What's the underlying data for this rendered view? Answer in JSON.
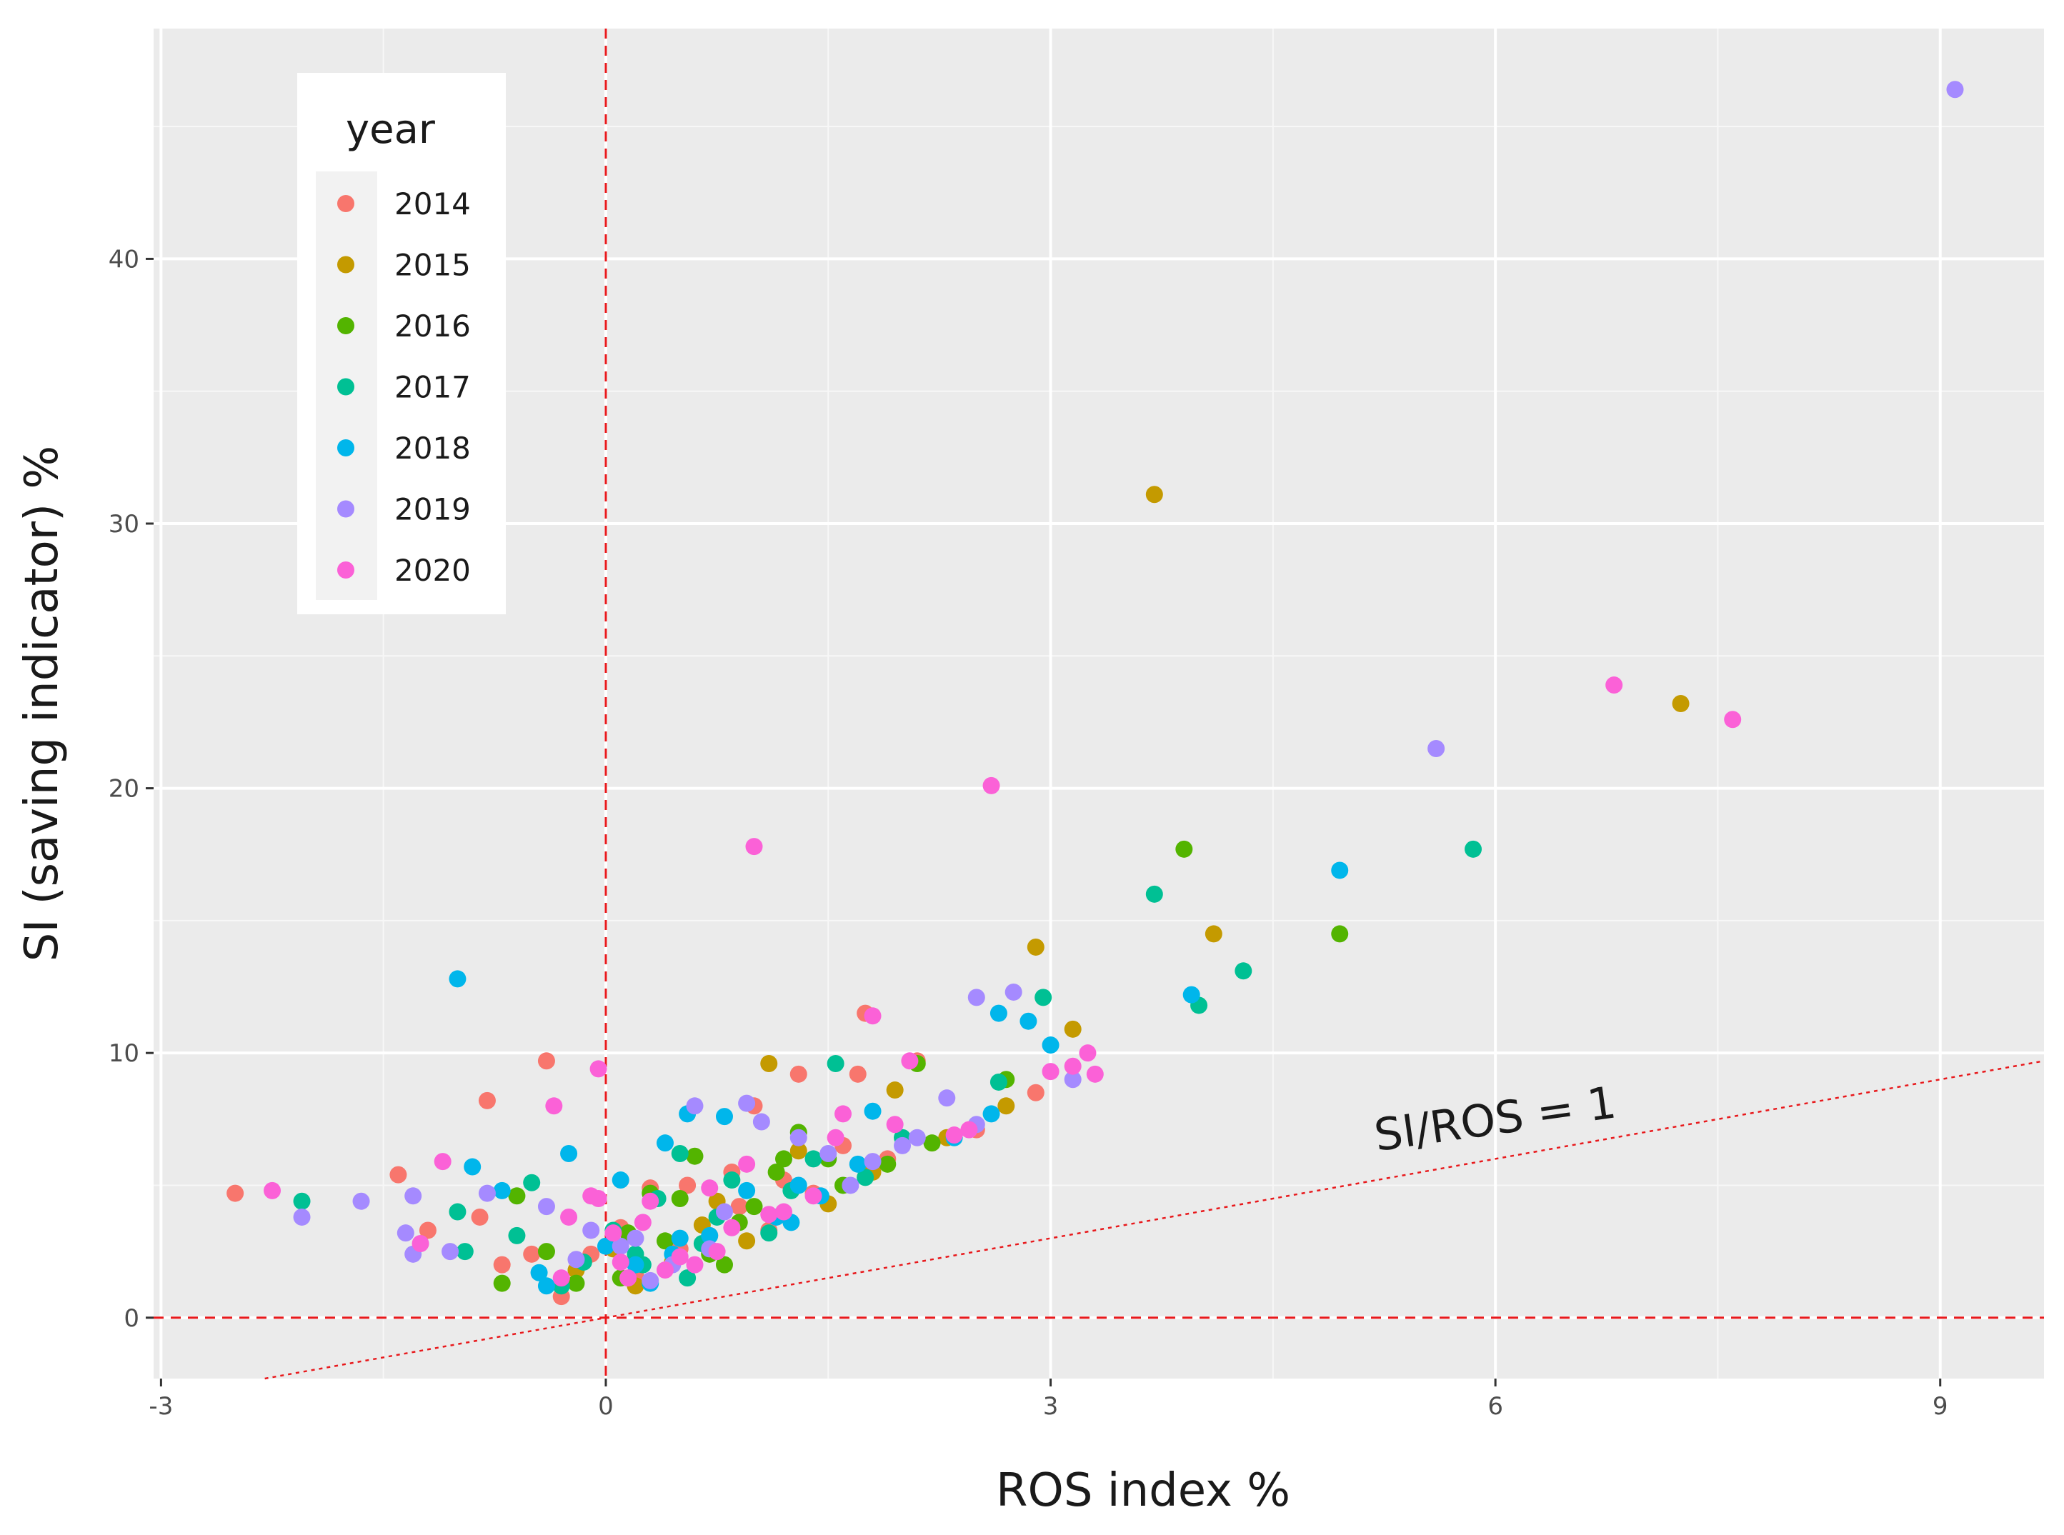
{
  "chart_data": {
    "type": "scatter",
    "title": "",
    "xlabel": "ROS index %",
    "ylabel": "SI (saving indicator) %",
    "xlim": [
      -3.05,
      9.7
    ],
    "ylim": [
      -2.3,
      48.7
    ],
    "x_ticks": [
      -3,
      0,
      3,
      6,
      9
    ],
    "y_ticks": [
      0,
      10,
      20,
      30,
      40
    ],
    "x_tick_labels": [
      "-3",
      "0",
      "3",
      "6",
      "9"
    ],
    "y_tick_labels": [
      "0",
      "10",
      "20",
      "30",
      "40"
    ],
    "grid": true,
    "legend": {
      "title": "year",
      "position": "top-left"
    },
    "reference_lines": [
      {
        "kind": "vertical",
        "x": 0,
        "style": "dashed",
        "color": "#e8191c"
      },
      {
        "kind": "horizontal",
        "y": 0,
        "style": "dashed",
        "color": "#e8191c"
      },
      {
        "kind": "diagonal",
        "slope": 1,
        "style": "dotted",
        "color": "#e8191c",
        "label": "SI/ROS = 1",
        "label_at": [
          5.2,
          6.3
        ],
        "label_angle_deg": -8
      }
    ],
    "series": [
      {
        "name": "2014",
        "color": "#F8766D",
        "points": [
          [
            -2.5,
            4.7
          ],
          [
            -1.4,
            5.4
          ],
          [
            -1.2,
            3.3
          ],
          [
            -0.8,
            8.2
          ],
          [
            -0.4,
            9.7
          ],
          [
            -0.85,
            3.8
          ],
          [
            -0.7,
            2.0
          ],
          [
            -0.3,
            0.8
          ],
          [
            -0.1,
            2.4
          ],
          [
            0.2,
            1.6
          ],
          [
            0.5,
            2.6
          ],
          [
            0.7,
            3.1
          ],
          [
            0.9,
            4.2
          ],
          [
            1.0,
            8.0
          ],
          [
            1.3,
            9.2
          ],
          [
            1.1,
            3.3
          ],
          [
            1.4,
            4.7
          ],
          [
            1.7,
            9.2
          ],
          [
            1.75,
            11.5
          ],
          [
            1.9,
            6.0
          ],
          [
            2.1,
            9.7
          ],
          [
            2.5,
            7.1
          ],
          [
            2.9,
            8.5
          ],
          [
            0.3,
            4.9
          ],
          [
            0.55,
            5.0
          ],
          [
            0.85,
            5.5
          ],
          [
            1.2,
            5.2
          ],
          [
            0.1,
            3.4
          ],
          [
            -0.5,
            2.4
          ],
          [
            1.6,
            6.5
          ]
        ]
      },
      {
        "name": "2015",
        "color": "#C49A00",
        "points": [
          [
            1.1,
            9.6
          ],
          [
            1.95,
            8.6
          ],
          [
            2.9,
            14.0
          ],
          [
            3.15,
            10.9
          ],
          [
            3.7,
            31.1
          ],
          [
            4.1,
            14.5
          ],
          [
            7.25,
            23.2
          ],
          [
            0.95,
            2.9
          ],
          [
            0.45,
            2.1
          ],
          [
            0.2,
            1.2
          ],
          [
            1.5,
            4.3
          ],
          [
            0.65,
            3.5
          ],
          [
            -0.2,
            1.8
          ],
          [
            1.3,
            6.3
          ],
          [
            2.3,
            6.8
          ],
          [
            1.8,
            5.5
          ],
          [
            0.05,
            2.6
          ],
          [
            0.75,
            4.4
          ],
          [
            2.7,
            8.0
          ]
        ]
      },
      {
        "name": "2016",
        "color": "#53B400",
        "points": [
          [
            -0.6,
            4.6
          ],
          [
            -0.7,
            1.3
          ],
          [
            -0.4,
            2.5
          ],
          [
            0.1,
            1.5
          ],
          [
            0.3,
            4.7
          ],
          [
            0.5,
            4.5
          ],
          [
            0.6,
            6.1
          ],
          [
            0.7,
            2.4
          ],
          [
            0.9,
            3.6
          ],
          [
            1.2,
            6.0
          ],
          [
            1.3,
            7.0
          ],
          [
            1.6,
            5.0
          ],
          [
            1.9,
            5.8
          ],
          [
            2.1,
            9.6
          ],
          [
            2.7,
            9.0
          ],
          [
            3.9,
            17.7
          ],
          [
            4.95,
            14.5
          ],
          [
            0.15,
            3.2
          ],
          [
            0.4,
            2.9
          ],
          [
            1.0,
            4.2
          ],
          [
            1.5,
            6.0
          ],
          [
            2.2,
            6.6
          ],
          [
            -0.2,
            1.3
          ],
          [
            0.8,
            2.0
          ],
          [
            1.15,
            5.5
          ]
        ]
      },
      {
        "name": "2017",
        "color": "#00C094",
        "points": [
          [
            -2.05,
            4.4
          ],
          [
            -1.0,
            4.0
          ],
          [
            -0.95,
            2.5
          ],
          [
            -0.5,
            5.1
          ],
          [
            -0.6,
            3.1
          ],
          [
            -0.3,
            1.2
          ],
          [
            0.2,
            2.4
          ],
          [
            0.35,
            4.5
          ],
          [
            0.5,
            6.2
          ],
          [
            0.55,
            1.5
          ],
          [
            0.75,
            3.8
          ],
          [
            0.85,
            5.2
          ],
          [
            1.1,
            3.2
          ],
          [
            1.4,
            6.0
          ],
          [
            1.55,
            9.6
          ],
          [
            1.75,
            5.3
          ],
          [
            2.0,
            6.8
          ],
          [
            2.65,
            8.9
          ],
          [
            2.95,
            12.1
          ],
          [
            3.7,
            16.0
          ],
          [
            4.0,
            11.8
          ],
          [
            4.3,
            13.1
          ],
          [
            5.85,
            17.7
          ],
          [
            0.05,
            3.3
          ],
          [
            0.25,
            2.0
          ],
          [
            0.65,
            2.8
          ],
          [
            1.25,
            4.8
          ],
          [
            -0.15,
            2.1
          ]
        ]
      },
      {
        "name": "2018",
        "color": "#00B6EB",
        "points": [
          [
            -1.0,
            12.8
          ],
          [
            -0.9,
            5.7
          ],
          [
            -0.7,
            4.8
          ],
          [
            -0.4,
            1.2
          ],
          [
            -0.25,
            6.2
          ],
          [
            0.1,
            5.2
          ],
          [
            0.2,
            2.0
          ],
          [
            0.4,
            6.6
          ],
          [
            0.5,
            3.0
          ],
          [
            0.55,
            7.7
          ],
          [
            0.8,
            7.6
          ],
          [
            0.95,
            4.8
          ],
          [
            1.15,
            3.8
          ],
          [
            1.3,
            5.0
          ],
          [
            1.7,
            5.8
          ],
          [
            1.8,
            7.8
          ],
          [
            2.35,
            6.8
          ],
          [
            2.6,
            7.7
          ],
          [
            2.65,
            11.5
          ],
          [
            2.85,
            11.2
          ],
          [
            3.0,
            10.3
          ],
          [
            3.95,
            12.2
          ],
          [
            4.95,
            16.9
          ],
          [
            0.3,
            1.3
          ],
          [
            0.7,
            3.1
          ],
          [
            1.45,
            4.6
          ],
          [
            0.0,
            2.7
          ],
          [
            0.45,
            2.4
          ],
          [
            1.25,
            3.6
          ],
          [
            -0.45,
            1.7
          ]
        ]
      },
      {
        "name": "2019",
        "color": "#A58AFF",
        "points": [
          [
            -2.05,
            3.8
          ],
          [
            -1.65,
            4.4
          ],
          [
            -1.3,
            4.6
          ],
          [
            -1.35,
            3.2
          ],
          [
            -1.3,
            2.4
          ],
          [
            -1.05,
            2.5
          ],
          [
            -0.8,
            4.7
          ],
          [
            -0.4,
            4.2
          ],
          [
            -0.1,
            3.3
          ],
          [
            0.1,
            2.7
          ],
          [
            0.3,
            1.4
          ],
          [
            0.6,
            8.0
          ],
          [
            0.8,
            4.0
          ],
          [
            0.95,
            8.1
          ],
          [
            1.05,
            7.4
          ],
          [
            1.3,
            6.8
          ],
          [
            1.5,
            6.2
          ],
          [
            1.8,
            5.9
          ],
          [
            2.0,
            6.5
          ],
          [
            2.3,
            8.3
          ],
          [
            2.5,
            12.1
          ],
          [
            2.75,
            12.3
          ],
          [
            2.5,
            7.3
          ],
          [
            3.15,
            9.0
          ],
          [
            5.6,
            21.5
          ],
          [
            9.1,
            46.4
          ],
          [
            0.45,
            2.0
          ],
          [
            0.7,
            2.6
          ],
          [
            1.65,
            5.0
          ],
          [
            2.1,
            6.8
          ],
          [
            -0.2,
            2.2
          ],
          [
            0.2,
            3.0
          ]
        ]
      },
      {
        "name": "2020",
        "color": "#FB61D7",
        "points": [
          [
            -2.25,
            4.8
          ],
          [
            -1.1,
            5.9
          ],
          [
            -1.25,
            2.8
          ],
          [
            -0.35,
            8.0
          ],
          [
            -0.25,
            3.8
          ],
          [
            -0.1,
            4.6
          ],
          [
            -0.05,
            4.5
          ],
          [
            -0.05,
            9.4
          ],
          [
            0.05,
            3.2
          ],
          [
            0.1,
            2.1
          ],
          [
            0.3,
            4.4
          ],
          [
            0.4,
            1.8
          ],
          [
            0.6,
            2.0
          ],
          [
            0.7,
            4.9
          ],
          [
            0.75,
            2.5
          ],
          [
            0.95,
            5.8
          ],
          [
            1.0,
            17.8
          ],
          [
            1.1,
            3.9
          ],
          [
            1.4,
            4.6
          ],
          [
            1.6,
            7.7
          ],
          [
            1.8,
            11.4
          ],
          [
            1.95,
            7.3
          ],
          [
            2.05,
            9.7
          ],
          [
            2.35,
            6.9
          ],
          [
            2.6,
            20.1
          ],
          [
            3.0,
            9.3
          ],
          [
            3.15,
            9.5
          ],
          [
            3.25,
            10.0
          ],
          [
            3.3,
            9.2
          ],
          [
            6.8,
            23.9
          ],
          [
            7.6,
            22.6
          ],
          [
            0.15,
            1.5
          ],
          [
            0.25,
            3.6
          ],
          [
            0.5,
            2.3
          ],
          [
            0.85,
            3.4
          ],
          [
            1.2,
            4.0
          ],
          [
            -0.3,
            1.5
          ],
          [
            1.55,
            6.8
          ],
          [
            2.45,
            7.1
          ]
        ]
      }
    ]
  }
}
